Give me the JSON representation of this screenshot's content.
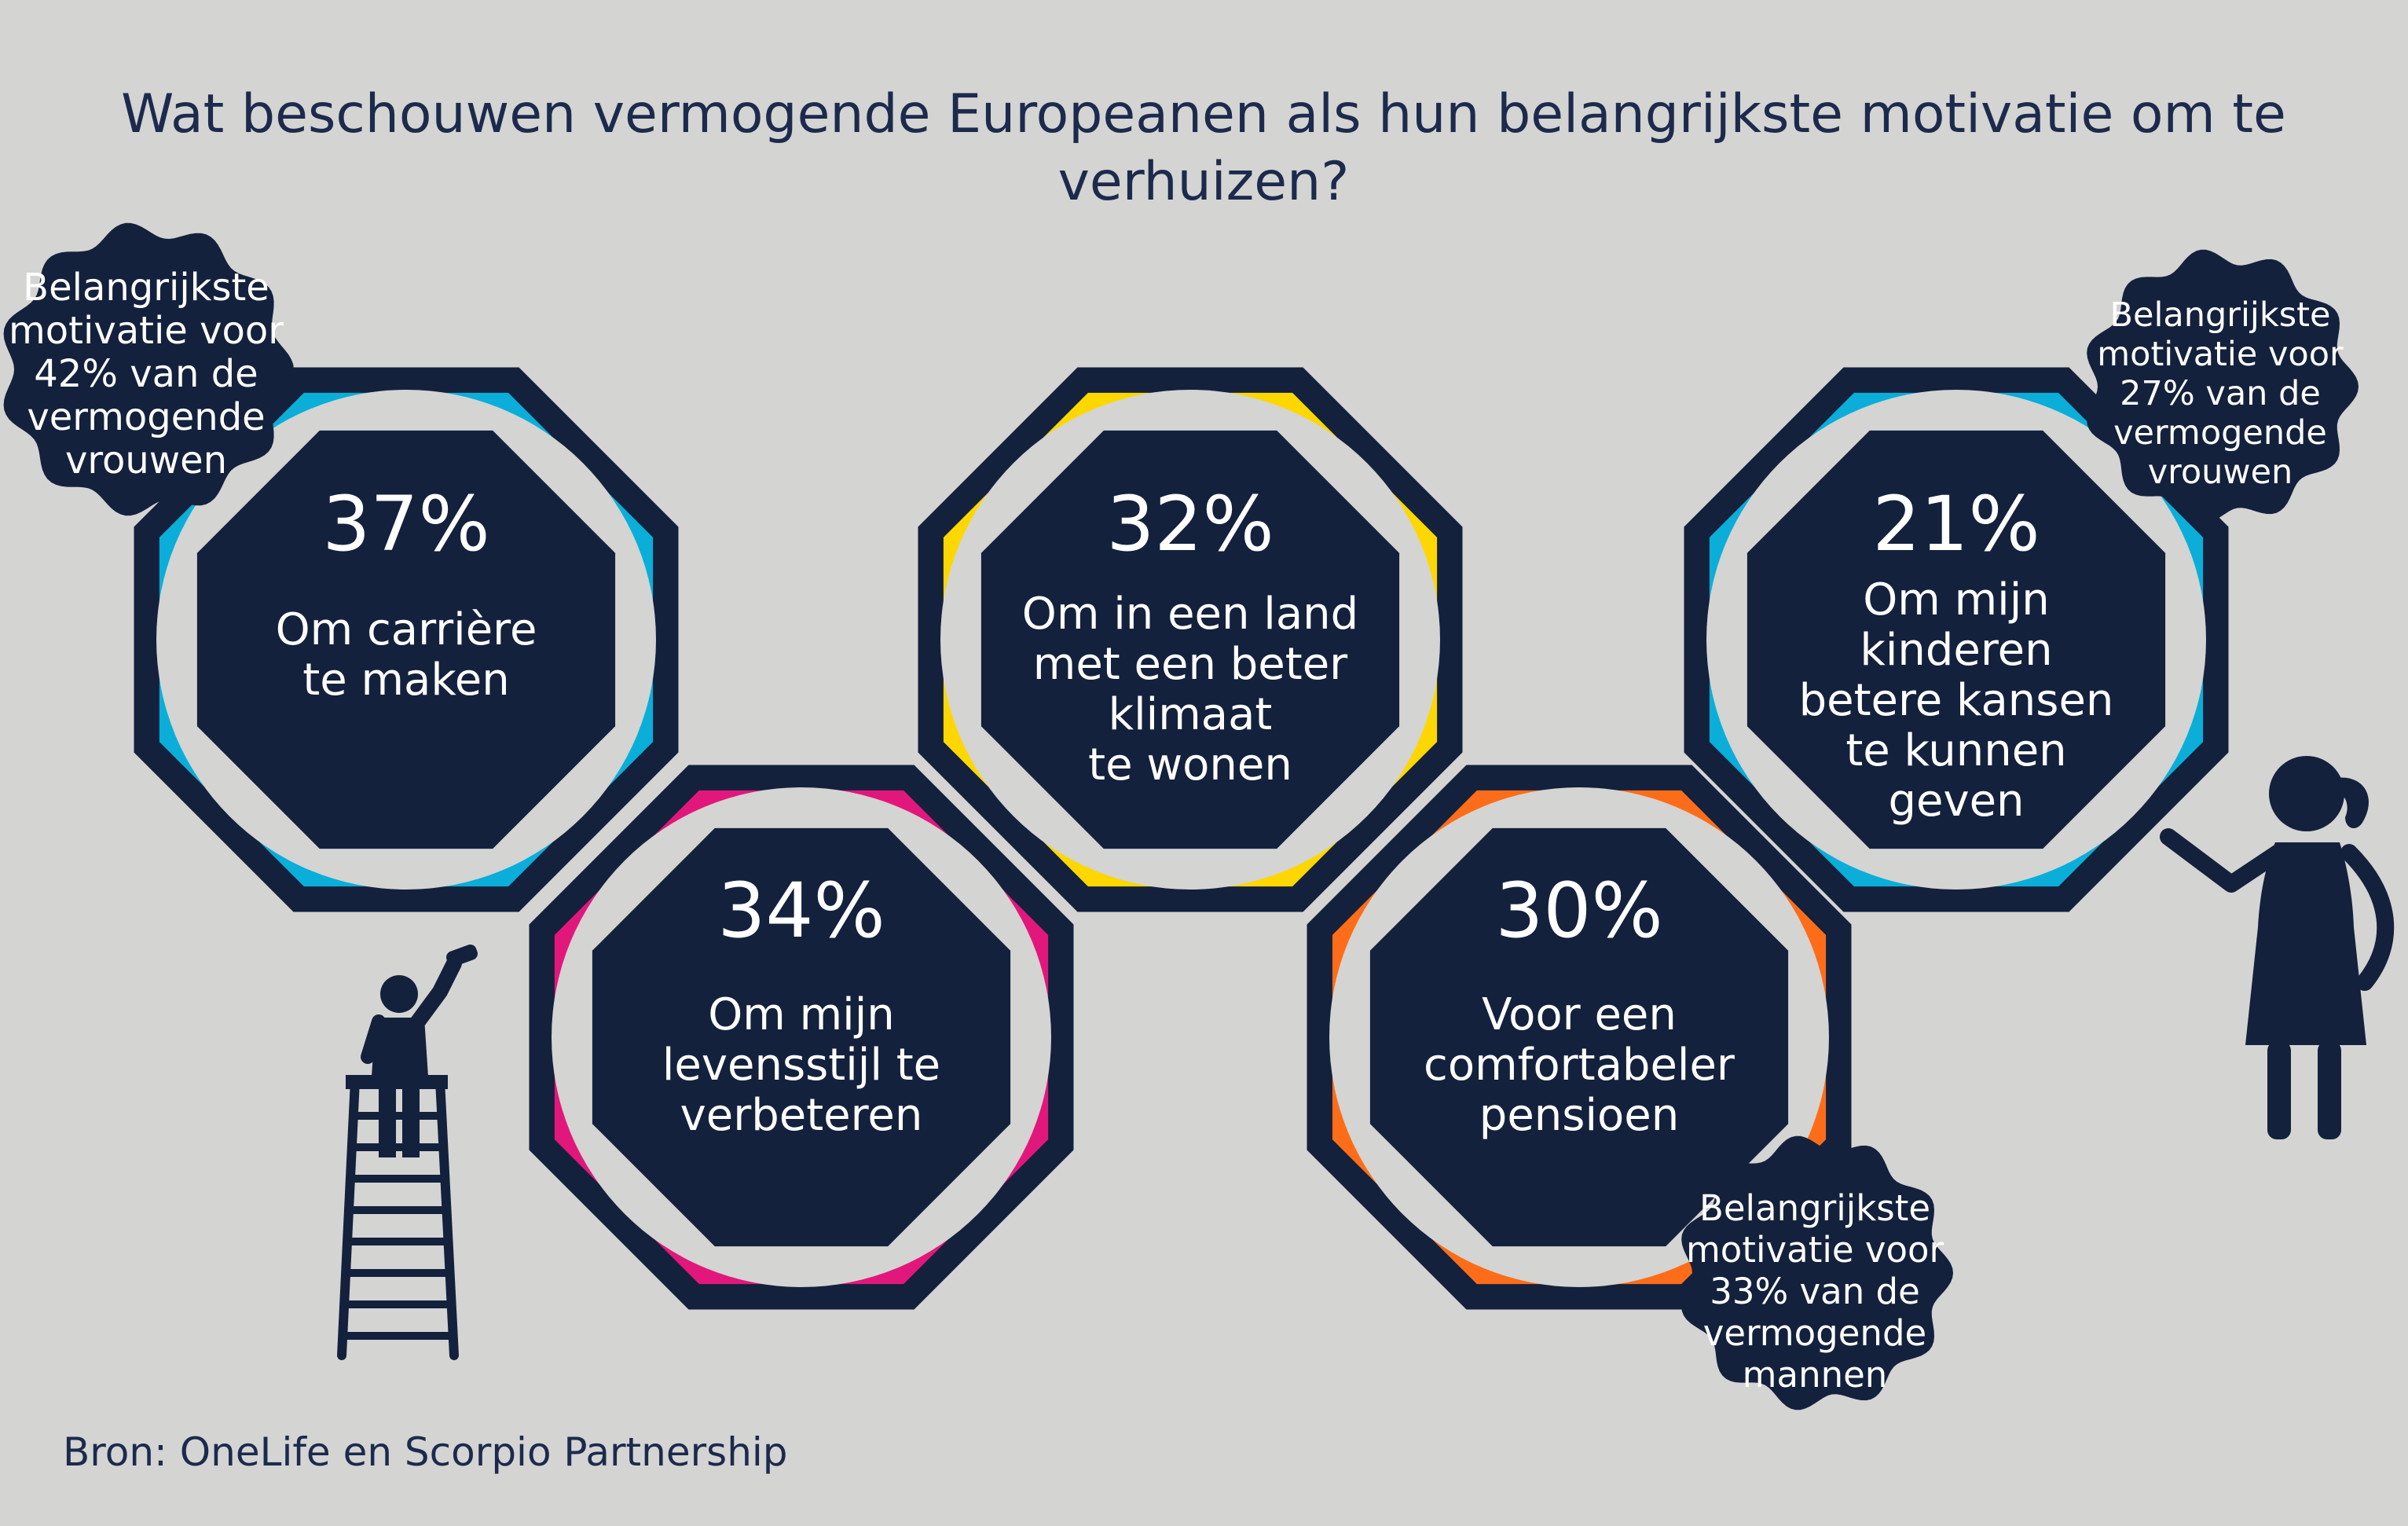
{
  "title": {
    "line1": "Wat beschouwen vermogende Europeanen als hun belangrijkste motivatie om te",
    "line2": "verhuizen?"
  },
  "source": "Bron: OneLife en Scorpio Partnership",
  "colors": {
    "background": "#d4d4d2",
    "navy": "#13213d",
    "circle": "#d4d4d2",
    "cyan": "#0aaed9",
    "magenta": "#e2177c",
    "yellow": "#fed700",
    "orange": "#fd6d19",
    "text_light": "#ffffff"
  },
  "motivations": [
    {
      "id": "career",
      "percent": "37%",
      "lines": [
        "Om carrière",
        "te maken"
      ],
      "color": "cyan"
    },
    {
      "id": "lifestyle",
      "percent": "34%",
      "lines": [
        "Om mijn",
        "levensstijl te",
        "verbeteren"
      ],
      "color": "magenta"
    },
    {
      "id": "climate",
      "percent": "32%",
      "lines": [
        "Om in een land",
        "met een beter",
        "klimaat",
        "te wonen"
      ],
      "color": "yellow"
    },
    {
      "id": "pension",
      "percent": "30%",
      "lines": [
        "Voor een",
        "comfortabeler",
        "pensioen"
      ],
      "color": "orange"
    },
    {
      "id": "children",
      "percent": "21%",
      "lines": [
        "Om mijn",
        "kinderen",
        "betere kansen",
        "te kunnen",
        "geven"
      ],
      "color": "cyan"
    }
  ],
  "badges": [
    {
      "id": "women-42",
      "lines": [
        "Belangrijkste",
        "motivatie voor",
        "42% van de",
        "vermogende",
        "vrouwen"
      ]
    },
    {
      "id": "women-27",
      "lines": [
        "Belangrijkste",
        "motivatie voor",
        "27% van de",
        "vermogende",
        "vrouwen"
      ]
    },
    {
      "id": "men-33",
      "lines": [
        "Belangrijkste",
        "motivatie voor",
        "33% van de",
        "vermogende",
        "mannen"
      ]
    }
  ],
  "icons": {
    "painter": "painter-on-ladder-icon",
    "girl": "girl-painting-icon"
  }
}
